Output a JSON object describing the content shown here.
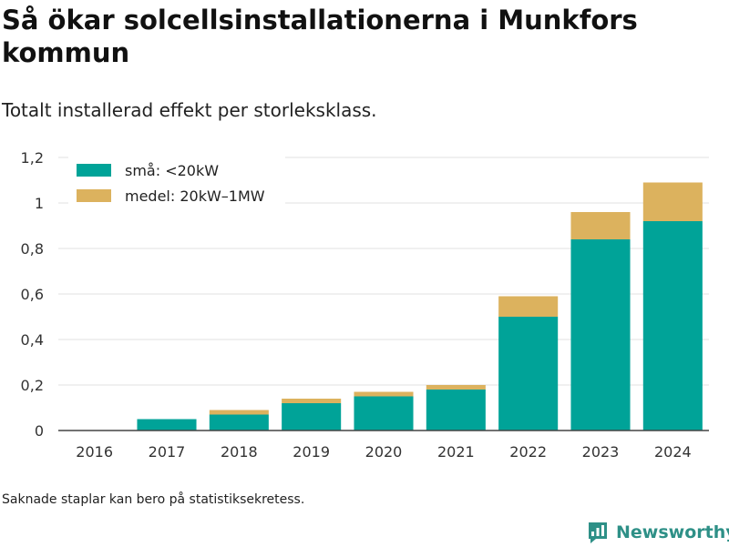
{
  "title": "Så ökar solcellsinstallationerna i Munkfors kommun",
  "subtitle": "Totalt installerad effekt per storleksklass.",
  "footnote": "Saknade staplar kan bero på statistiksekretess.",
  "brand": {
    "name": "Newsworthy",
    "icon": "newsworthy-logo-icon",
    "color": "#2e9087"
  },
  "chart_data": {
    "type": "bar",
    "stacked": true,
    "categories": [
      "2016",
      "2017",
      "2018",
      "2019",
      "2020",
      "2021",
      "2022",
      "2023",
      "2024"
    ],
    "series": [
      {
        "name": "små: <20kW",
        "color": "#00a398",
        "values": [
          0,
          0.05,
          0.07,
          0.12,
          0.15,
          0.18,
          0.5,
          0.84,
          0.92
        ]
      },
      {
        "name": "medel: 20kW–1MW",
        "color": "#dcb25e",
        "values": [
          0,
          0,
          0.02,
          0.02,
          0.02,
          0.02,
          0.09,
          0.12,
          0.17
        ]
      }
    ],
    "ylim": [
      0,
      1.2
    ],
    "yticks": [
      0,
      0.2,
      0.4,
      0.6,
      0.8,
      1,
      1.2
    ],
    "ytick_labels": [
      "0",
      "0,2",
      "0,4",
      "0,6",
      "0,8",
      "1",
      "1,2"
    ],
    "xlabel": "",
    "ylabel": "",
    "grid": true,
    "legend_position": "top-left"
  }
}
